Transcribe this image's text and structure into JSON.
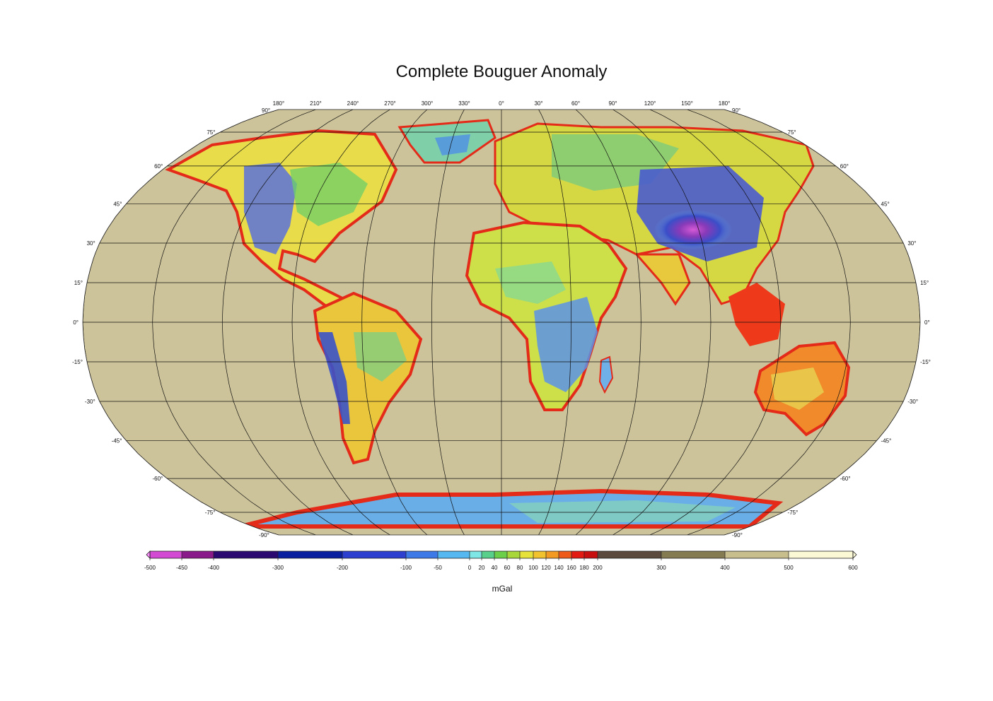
{
  "title": "Complete Bouguer Anomaly",
  "map": {
    "projection": "Robinson",
    "central_meridian": 0,
    "longitude_labels": [
      "180°",
      "210°",
      "240°",
      "270°",
      "300°",
      "330°",
      "0°",
      "30°",
      "60°",
      "90°",
      "120°",
      "150°",
      "180°"
    ],
    "corner_labels": {
      "top_left": "90°",
      "top_right": "90°",
      "bottom_left": "-90°",
      "bottom_right": "-90°"
    },
    "latitude_labels": [
      {
        "lat": 75,
        "label": "75°"
      },
      {
        "lat": 60,
        "label": "60°"
      },
      {
        "lat": 45,
        "label": "45°"
      },
      {
        "lat": 30,
        "label": "30°"
      },
      {
        "lat": 15,
        "label": "15°"
      },
      {
        "lat": 0,
        "label": "0°"
      },
      {
        "lat": -15,
        "label": "-15°"
      },
      {
        "lat": -30,
        "label": "-30°"
      },
      {
        "lat": -45,
        "label": "-45°"
      },
      {
        "lat": -60,
        "label": "-60°"
      },
      {
        "lat": -75,
        "label": "-75°"
      }
    ],
    "ocean_color": "#cdc39a"
  },
  "colorbar": {
    "unit": "mGal",
    "range": [
      -500,
      600
    ],
    "stops": [
      {
        "value": -500,
        "color": "#ff8cff"
      },
      {
        "value": -450,
        "color": "#d24bd2"
      },
      {
        "value": -400,
        "color": "#8a1a8a"
      },
      {
        "value": -300,
        "color": "#2a0a70"
      },
      {
        "value": -200,
        "color": "#0a1ea0"
      },
      {
        "value": -100,
        "color": "#2c3fcf"
      },
      {
        "value": -50,
        "color": "#3d7ae8"
      },
      {
        "value": 0,
        "color": "#55b8f0"
      },
      {
        "value": 20,
        "color": "#7fe6e6"
      },
      {
        "value": 40,
        "color": "#58d08c"
      },
      {
        "value": 60,
        "color": "#6ccf4a"
      },
      {
        "value": 80,
        "color": "#a8d73a"
      },
      {
        "value": 100,
        "color": "#e6e23a"
      },
      {
        "value": 120,
        "color": "#f2c32c"
      },
      {
        "value": 140,
        "color": "#f39a22"
      },
      {
        "value": 160,
        "color": "#ee5a1a"
      },
      {
        "value": 180,
        "color": "#e31a12"
      },
      {
        "value": 200,
        "color": "#c80f10"
      },
      {
        "value": 300,
        "color": "#5c4a3e"
      },
      {
        "value": 400,
        "color": "#857b53"
      },
      {
        "value": 500,
        "color": "#c7bd8d"
      },
      {
        "value": 600,
        "color": "#fbf8d6"
      }
    ],
    "ticks": [
      {
        "value": -500,
        "label": "-500"
      },
      {
        "value": -450,
        "label": "-450"
      },
      {
        "value": -400,
        "label": "-400"
      },
      {
        "value": -300,
        "label": "-300"
      },
      {
        "value": -200,
        "label": "-200"
      },
      {
        "value": -100,
        "label": "-100"
      },
      {
        "value": -50,
        "label": "-50"
      },
      {
        "value": 0,
        "label": "0"
      },
      {
        "value": 20,
        "label": "20"
      },
      {
        "value": 40,
        "label": "40"
      },
      {
        "value": 60,
        "label": "60"
      },
      {
        "value": 80,
        "label": "80"
      },
      {
        "value": 100,
        "label": "100"
      },
      {
        "value": 120,
        "label": "120"
      },
      {
        "value": 140,
        "label": "140"
      },
      {
        "value": 160,
        "label": "160"
      },
      {
        "value": 180,
        "label": "180"
      },
      {
        "value": 200,
        "label": "200"
      },
      {
        "value": 300,
        "label": "300"
      },
      {
        "value": 400,
        "label": "400"
      },
      {
        "value": 500,
        "label": "500"
      },
      {
        "value": 600,
        "label": "600"
      }
    ]
  }
}
